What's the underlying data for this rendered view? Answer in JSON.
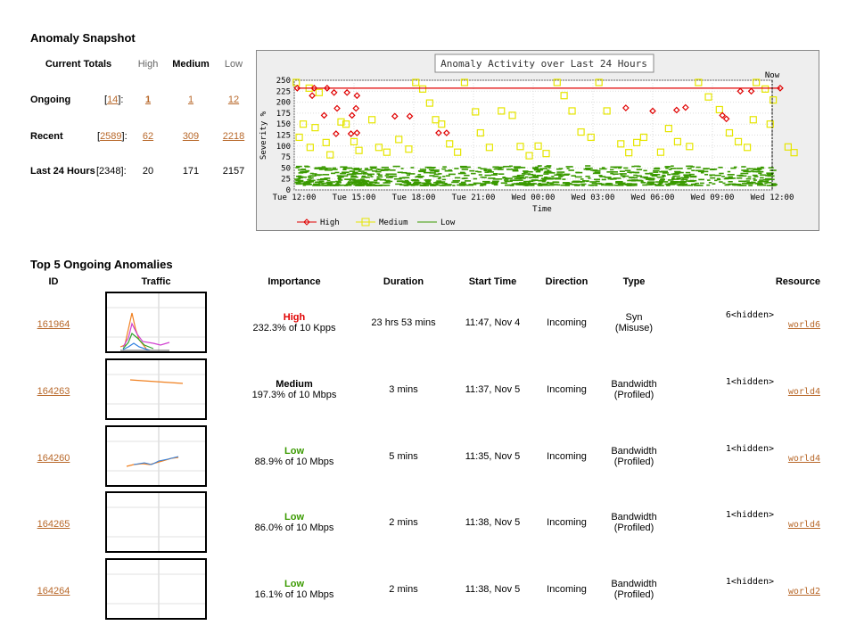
{
  "snapshot": {
    "title": "Anomaly Snapshot",
    "headers": {
      "totals": "Current Totals",
      "high": "High",
      "medium": "Medium",
      "low": "Low"
    },
    "rows": [
      {
        "label": "Ongoing",
        "count": "[14]:",
        "count_link": "14",
        "high": "1",
        "medium": "1",
        "low": "12",
        "linked": true
      },
      {
        "label": "Recent",
        "count": "[2589]:",
        "count_link": "2589",
        "high": "62",
        "medium": "309",
        "low": "2218",
        "linked": true
      },
      {
        "label": "Last 24 Hours",
        "count": "[2348]:",
        "count_link": "",
        "high": "20",
        "medium": "171",
        "low": "2157",
        "linked": false
      }
    ]
  },
  "chart_data": {
    "type": "scatter",
    "title": "Anomaly Activity over Last 24 Hours",
    "ylabel": "Severity %",
    "xlabel": "Time",
    "ylim": [
      0,
      250
    ],
    "yticks": [
      "0",
      "25",
      "50",
      "75",
      "100",
      "125",
      "150",
      "175",
      "200",
      "225",
      "250"
    ],
    "xticks": [
      "Tue 12:00",
      "Tue 15:00",
      "Tue 18:00",
      "Tue 21:00",
      "Wed 00:00",
      "Wed 03:00",
      "Wed 06:00",
      "Wed 09:00",
      "Wed 12:00"
    ],
    "now_label": "Now",
    "legend": [
      "High",
      "Medium",
      "Low"
    ],
    "colors": {
      "high": "#e00000",
      "medium": "#e6e600",
      "low": "#3a9a00"
    },
    "series": [
      {
        "name": "High",
        "points": [
          [
            0.3,
            232
          ],
          [
            2.0,
            232
          ],
          [
            3.3,
            232
          ],
          [
            4.0,
            222
          ],
          [
            5.3,
            222
          ],
          [
            6.3,
            215
          ],
          [
            1.8,
            215
          ],
          [
            4.3,
            186
          ],
          [
            6.2,
            186
          ],
          [
            3.0,
            170
          ],
          [
            5.8,
            170
          ],
          [
            4.2,
            128
          ],
          [
            5.7,
            128
          ],
          [
            6.3,
            130
          ],
          [
            10.1,
            168
          ],
          [
            11.6,
            168
          ],
          [
            14.5,
            130
          ],
          [
            15.3,
            130
          ],
          [
            33.3,
            187
          ],
          [
            36.0,
            180
          ],
          [
            38.4,
            182
          ],
          [
            39.3,
            188
          ],
          [
            43.0,
            170
          ],
          [
            43.4,
            162
          ],
          [
            44.8,
            225
          ],
          [
            45.9,
            225
          ],
          [
            48.8,
            232
          ]
        ]
      },
      {
        "name": "Medium",
        "points": [
          [
            0.2,
            245
          ],
          [
            1.5,
            232
          ],
          [
            2.5,
            222
          ],
          [
            3.2,
            108
          ],
          [
            0.9,
            150
          ],
          [
            1.6,
            97
          ],
          [
            0.5,
            120
          ],
          [
            2.1,
            142
          ],
          [
            3.6,
            80
          ],
          [
            4.7,
            155
          ],
          [
            5.2,
            150
          ],
          [
            6.0,
            110
          ],
          [
            6.5,
            90
          ],
          [
            7.8,
            160
          ],
          [
            8.5,
            97
          ],
          [
            9.3,
            86
          ],
          [
            10.5,
            115
          ],
          [
            11.5,
            93
          ],
          [
            12.2,
            245
          ],
          [
            12.9,
            230
          ],
          [
            13.6,
            198
          ],
          [
            14.2,
            160
          ],
          [
            14.8,
            150
          ],
          [
            15.6,
            105
          ],
          [
            16.4,
            86
          ],
          [
            17.1,
            245
          ],
          [
            18.2,
            178
          ],
          [
            18.7,
            130
          ],
          [
            19.6,
            97
          ],
          [
            20.8,
            180
          ],
          [
            21.9,
            170
          ],
          [
            22.7,
            99
          ],
          [
            23.6,
            78
          ],
          [
            24.5,
            100
          ],
          [
            25.3,
            83
          ],
          [
            26.4,
            245
          ],
          [
            27.1,
            215
          ],
          [
            27.9,
            180
          ],
          [
            28.8,
            132
          ],
          [
            29.8,
            120
          ],
          [
            30.6,
            245
          ],
          [
            31.4,
            180
          ],
          [
            32.8,
            105
          ],
          [
            33.6,
            85
          ],
          [
            34.4,
            108
          ],
          [
            35.1,
            120
          ],
          [
            36.8,
            86
          ],
          [
            37.6,
            140
          ],
          [
            38.5,
            110
          ],
          [
            39.7,
            99
          ],
          [
            40.6,
            245
          ],
          [
            41.6,
            212
          ],
          [
            42.7,
            183
          ],
          [
            43.7,
            130
          ],
          [
            44.6,
            110
          ],
          [
            45.5,
            97
          ],
          [
            46.4,
            245
          ],
          [
            47.3,
            230
          ],
          [
            48.1,
            205
          ],
          [
            49.6,
            98
          ],
          [
            50.2,
            85
          ],
          [
            47.8,
            150
          ],
          [
            46.1,
            160
          ]
        ]
      },
      {
        "name": "Low",
        "band": [
          10,
          55
        ]
      }
    ]
  },
  "top5": {
    "title": "Top 5 Ongoing Anomalies",
    "headers": {
      "id": "ID",
      "traffic": "Traffic",
      "importance": "Importance",
      "duration": "Duration",
      "start": "Start Time",
      "direction": "Direction",
      "type": "Type",
      "resource": "Resource"
    },
    "rows": [
      {
        "id": "161964",
        "imp_level": "High",
        "imp_detail": "232.3% of 10 Kpps",
        "imp_class": "imp-high",
        "duration": "23 hrs 53 mins",
        "start": "11:47, Nov 4",
        "direction": "Incoming",
        "type1": "Syn",
        "type2": "(Misuse)",
        "res1": "6<hidden>",
        "res2": "world6"
      },
      {
        "id": "164263",
        "imp_level": "Medium",
        "imp_detail": "197.3% of 10 Mbps",
        "imp_class": "imp-med",
        "duration": "3 mins",
        "start": "11:37, Nov 5",
        "direction": "Incoming",
        "type1": "Bandwidth",
        "type2": "(Profiled)",
        "res1": "1<hidden>",
        "res2": "world4"
      },
      {
        "id": "164260",
        "imp_level": "Low",
        "imp_detail": "88.9% of 10 Mbps",
        "imp_class": "imp-low",
        "duration": "5 mins",
        "start": "11:35, Nov 5",
        "direction": "Incoming",
        "type1": "Bandwidth",
        "type2": "(Profiled)",
        "res1": "1<hidden>",
        "res2": "world4"
      },
      {
        "id": "164265",
        "imp_level": "Low",
        "imp_detail": "86.0% of 10 Mbps",
        "imp_class": "imp-low",
        "duration": "2 mins",
        "start": "11:38, Nov 5",
        "direction": "Incoming",
        "type1": "Bandwidth",
        "type2": "(Profiled)",
        "res1": "1<hidden>",
        "res2": "world4"
      },
      {
        "id": "164264",
        "imp_level": "Low",
        "imp_detail": "16.1% of 10 Mbps",
        "imp_class": "imp-low",
        "duration": "2 mins",
        "start": "11:38, Nov 5",
        "direction": "Incoming",
        "type1": "Bandwidth",
        "type2": "(Profiled)",
        "res1": "1<hidden>",
        "res2": "world2"
      }
    ]
  }
}
